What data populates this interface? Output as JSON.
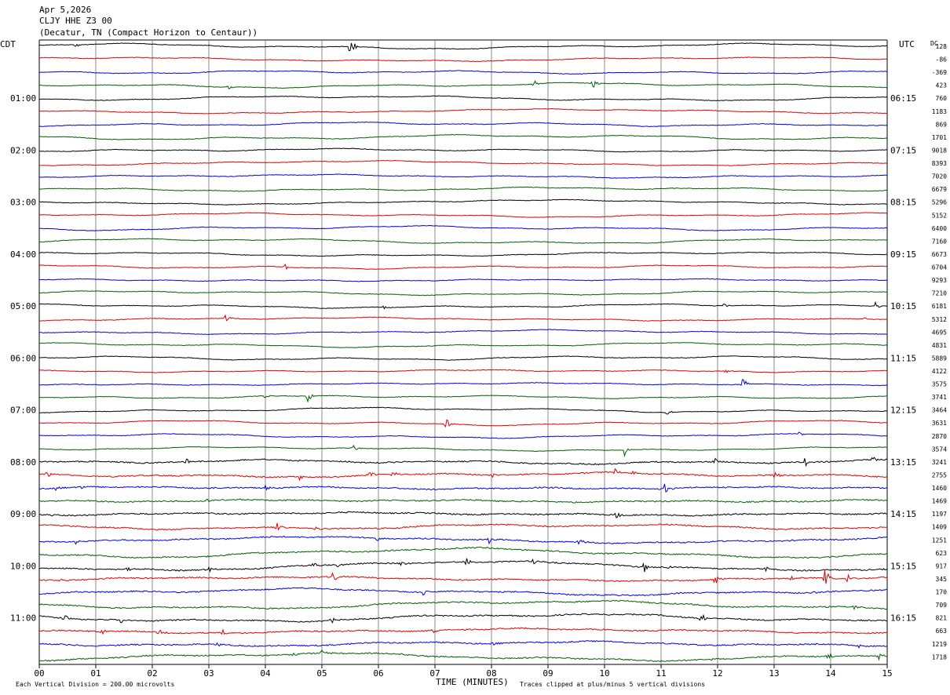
{
  "header": {
    "date": "Apr 5,2026",
    "station": "CLJY HHE Z3 00",
    "location": "(Decatur, TN (Compact Horizon to Centaur))"
  },
  "left_label": "CDT",
  "right_label": "UTC",
  "dc_label": "DC",
  "footer": {
    "xlabel": "TIME (MINUTES)",
    "scale_note": "Each Vertical Division =  200.00 microvolts",
    "clip_note": "Traces clipped at plus/minus 5 vertical divisions"
  },
  "chart_data": {
    "type": "line",
    "subtype": "helicorder",
    "xlim": [
      0,
      15
    ],
    "x_ticks": [
      "00",
      "01",
      "02",
      "03",
      "04",
      "05",
      "06",
      "07",
      "08",
      "09",
      "10",
      "11",
      "12",
      "13",
      "14",
      "15"
    ],
    "trace_colors": [
      "#000000",
      "#e00000",
      "#0000e0",
      "#006000"
    ],
    "left_hour_labels": [
      "01:00",
      "02:00",
      "03:00",
      "04:00",
      "05:00",
      "06:00",
      "07:00",
      "08:00",
      "09:00",
      "10:00",
      "11:00"
    ],
    "right_hour_labels": [
      "06:15",
      "07:15",
      "08:15",
      "09:15",
      "10:15",
      "11:15",
      "12:15",
      "13:15",
      "14:15",
      "15:15",
      "16:15"
    ],
    "dc_offsets": [
      "128",
      "-86",
      "-369",
      "423",
      "760",
      "1183",
      "869",
      "1701",
      "9018",
      "8393",
      "7020",
      "6679",
      "5296",
      "5152",
      "6400",
      "7160",
      "6673",
      "6704",
      "9293",
      "7210",
      "6181",
      "5312",
      "4695",
      "4831",
      "5889",
      "4122",
      "3575",
      "3741",
      "3464",
      "3631",
      "2870",
      "3574",
      "3241",
      "2755",
      "1460",
      "1469",
      "1197",
      "1409",
      "1251",
      "623",
      "917",
      "345",
      "170",
      "709",
      "821",
      "663",
      "1219",
      "1718"
    ],
    "events": [
      {
        "line": 0,
        "x": 0.65,
        "amp": 4
      },
      {
        "line": 0,
        "x": 5.5,
        "amp": 18
      },
      {
        "line": 3,
        "x": 3.35,
        "amp": 4
      },
      {
        "line": 3,
        "x": 8.75,
        "amp": 7
      },
      {
        "line": 3,
        "x": 9.8,
        "amp": 6
      },
      {
        "line": 17,
        "x": 4.35,
        "amp": 4
      },
      {
        "line": 20,
        "x": 6.1,
        "amp": 7
      },
      {
        "line": 20,
        "x": 12.1,
        "amp": 5
      },
      {
        "line": 20,
        "x": 14.8,
        "amp": 6
      },
      {
        "line": 21,
        "x": 3.3,
        "amp": 5
      },
      {
        "line": 21,
        "x": 14.6,
        "amp": 4
      },
      {
        "line": 25,
        "x": 12.15,
        "amp": 4
      },
      {
        "line": 26,
        "x": 5.6,
        "amp": 4
      },
      {
        "line": 26,
        "x": 12.45,
        "amp": 10
      },
      {
        "line": 27,
        "x": 4.0,
        "amp": 4
      },
      {
        "line": 27,
        "x": 4.75,
        "amp": 8
      },
      {
        "line": 28,
        "x": 11.1,
        "amp": 6
      },
      {
        "line": 29,
        "x": 7.2,
        "amp": 8
      },
      {
        "line": 30,
        "x": 13.45,
        "amp": 3
      },
      {
        "line": 31,
        "x": 5.55,
        "amp": 6
      },
      {
        "line": 31,
        "x": 10.35,
        "amp": 8
      },
      {
        "line": 32,
        "x": 2.6,
        "amp": 5
      },
      {
        "line": 32,
        "x": 11.95,
        "amp": 5
      },
      {
        "line": 32,
        "x": 13.55,
        "amp": 7
      },
      {
        "line": 32,
        "x": 14.75,
        "amp": 7
      },
      {
        "line": 33,
        "x": 0.15,
        "amp": 5
      },
      {
        "line": 33,
        "x": 4.6,
        "amp": 5
      },
      {
        "line": 33,
        "x": 5.85,
        "amp": 6
      },
      {
        "line": 33,
        "x": 6.25,
        "amp": 5
      },
      {
        "line": 33,
        "x": 8.0,
        "amp": 5
      },
      {
        "line": 33,
        "x": 10.2,
        "amp": 7
      },
      {
        "line": 33,
        "x": 10.5,
        "amp": 4
      },
      {
        "line": 33,
        "x": 13.0,
        "amp": 6
      },
      {
        "line": 34,
        "x": 0.3,
        "amp": 5
      },
      {
        "line": 34,
        "x": 0.75,
        "amp": 5
      },
      {
        "line": 34,
        "x": 4.0,
        "amp": 4
      },
      {
        "line": 34,
        "x": 11.05,
        "amp": 9
      },
      {
        "line": 35,
        "x": 2.95,
        "amp": 4
      },
      {
        "line": 36,
        "x": 0.25,
        "amp": 4
      },
      {
        "line": 36,
        "x": 10.2,
        "amp": 5
      },
      {
        "line": 37,
        "x": 4.2,
        "amp": 6
      },
      {
        "line": 37,
        "x": 4.9,
        "amp": 3
      },
      {
        "line": 38,
        "x": 0.65,
        "amp": 4
      },
      {
        "line": 38,
        "x": 5.95,
        "amp": 4
      },
      {
        "line": 38,
        "x": 7.95,
        "amp": 9
      },
      {
        "line": 38,
        "x": 9.55,
        "amp": 4
      },
      {
        "line": 38,
        "x": 11.8,
        "amp": 3
      },
      {
        "line": 40,
        "x": 1.55,
        "amp": 4
      },
      {
        "line": 40,
        "x": 3.0,
        "amp": 5
      },
      {
        "line": 40,
        "x": 4.85,
        "amp": 5
      },
      {
        "line": 40,
        "x": 5.25,
        "amp": 5
      },
      {
        "line": 40,
        "x": 6.4,
        "amp": 4
      },
      {
        "line": 40,
        "x": 7.55,
        "amp": 7
      },
      {
        "line": 40,
        "x": 8.75,
        "amp": 6
      },
      {
        "line": 40,
        "x": 10.7,
        "amp": 7
      },
      {
        "line": 40,
        "x": 11.1,
        "amp": 4
      },
      {
        "line": 40,
        "x": 12.85,
        "amp": 5
      },
      {
        "line": 41,
        "x": 0.35,
        "amp": 4
      },
      {
        "line": 41,
        "x": 5.2,
        "amp": 10
      },
      {
        "line": 41,
        "x": 11.95,
        "amp": 9
      },
      {
        "line": 41,
        "x": 13.3,
        "amp": 5
      },
      {
        "line": 41,
        "x": 13.9,
        "amp": 14
      },
      {
        "line": 41,
        "x": 14.3,
        "amp": 6
      },
      {
        "line": 42,
        "x": 6.8,
        "amp": 5
      },
      {
        "line": 42,
        "x": 13.7,
        "amp": 4
      },
      {
        "line": 43,
        "x": 14.4,
        "amp": 6
      },
      {
        "line": 44,
        "x": 0.45,
        "amp": 5
      },
      {
        "line": 44,
        "x": 1.45,
        "amp": 6
      },
      {
        "line": 44,
        "x": 5.15,
        "amp": 7
      },
      {
        "line": 44,
        "x": 11.7,
        "amp": 9
      },
      {
        "line": 45,
        "x": 1.1,
        "amp": 4
      },
      {
        "line": 45,
        "x": 2.1,
        "amp": 5
      },
      {
        "line": 45,
        "x": 3.25,
        "amp": 4
      },
      {
        "line": 45,
        "x": 7.0,
        "amp": 6
      },
      {
        "line": 46,
        "x": 3.15,
        "amp": 4
      },
      {
        "line": 46,
        "x": 8.0,
        "amp": 4
      },
      {
        "line": 46,
        "x": 14.5,
        "amp": 3
      },
      {
        "line": 47,
        "x": 4.5,
        "amp": 5
      },
      {
        "line": 47,
        "x": 5.0,
        "amp": 4
      },
      {
        "line": 47,
        "x": 11.9,
        "amp": 4
      },
      {
        "line": 47,
        "x": 13.95,
        "amp": 6
      },
      {
        "line": 47,
        "x": 14.85,
        "amp": 5
      }
    ]
  }
}
